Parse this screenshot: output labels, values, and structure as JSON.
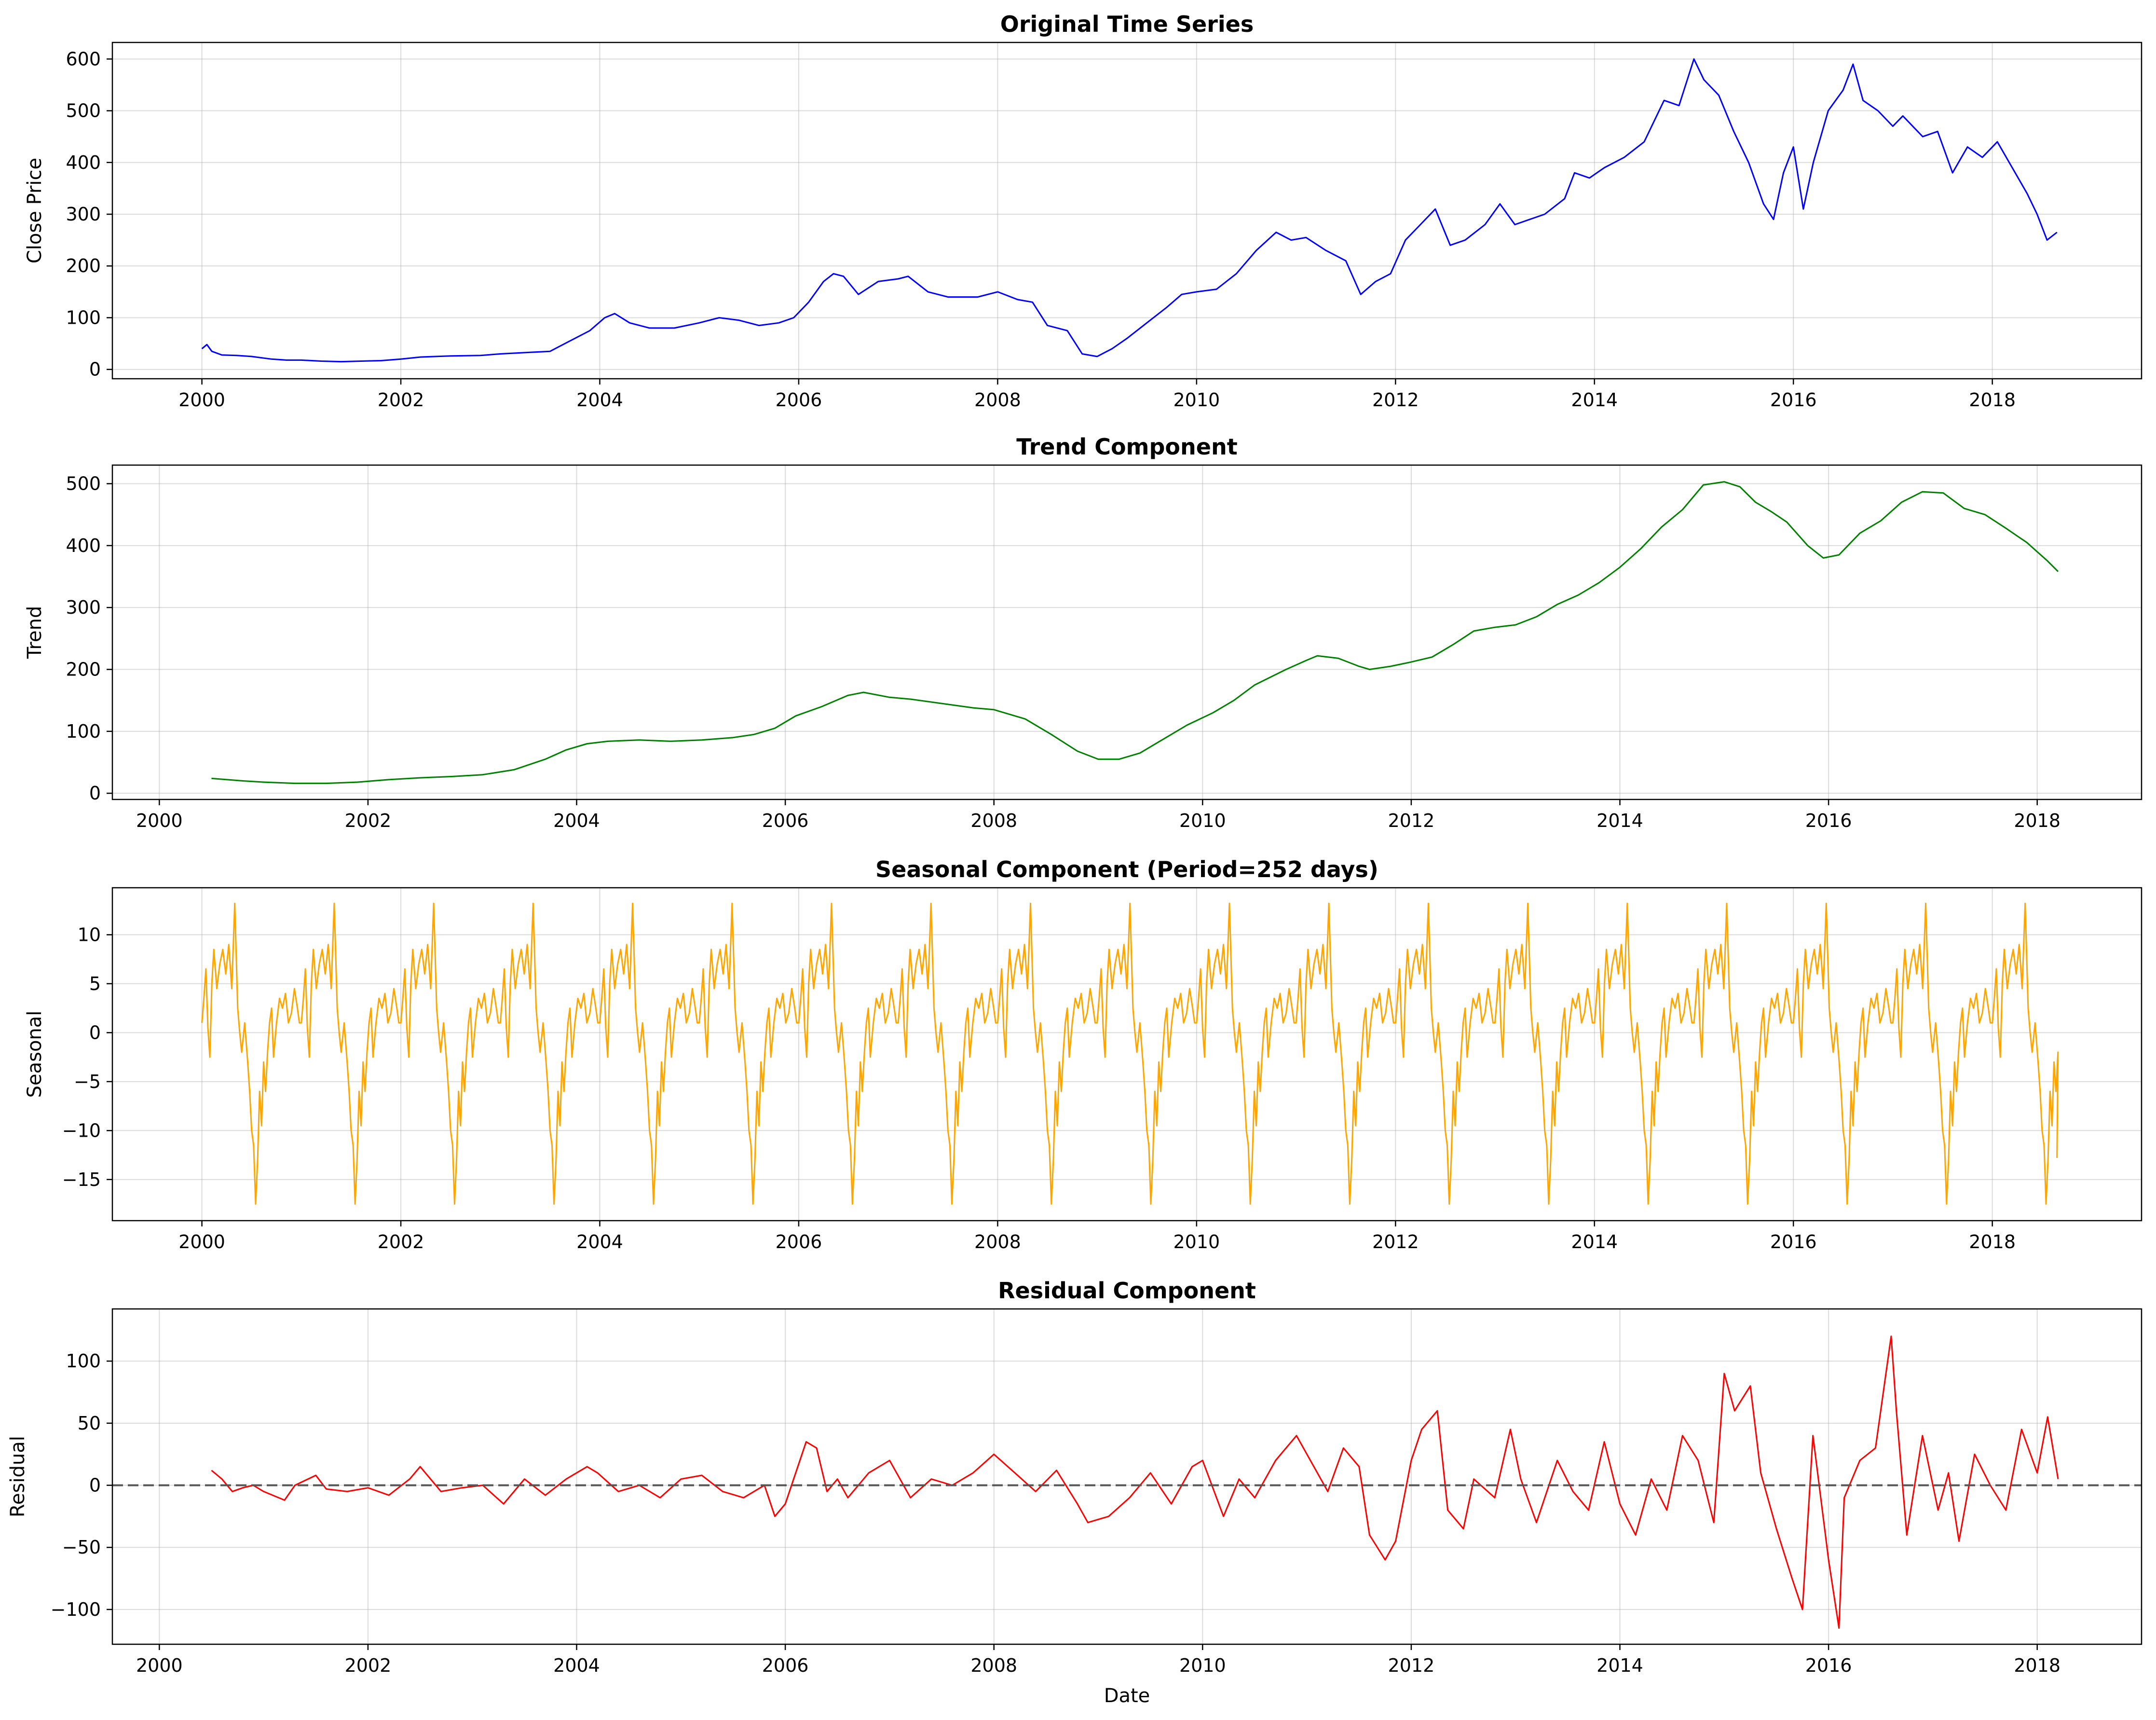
{
  "colors": {
    "background": "#ffffff",
    "axes": "#000000",
    "grid": "#b0b0b0",
    "zero_line": "#555555"
  },
  "chart_data": [
    {
      "type": "line",
      "title": "Original Time Series",
      "xlabel": "",
      "ylabel": "Close Price",
      "color": "#0000ff",
      "xlim": [
        1999.1,
        2019.5
      ],
      "ylim": [
        -18,
        632
      ],
      "xticks": [
        2000,
        2002,
        2004,
        2006,
        2008,
        2010,
        2012,
        2014,
        2016,
        2018
      ],
      "yticks": [
        0,
        100,
        200,
        300,
        400,
        500,
        600
      ],
      "grid": true,
      "series": [
        {
          "name": "Close Price",
          "x": [
            2000.0,
            2000.05,
            2000.1,
            2000.2,
            2000.35,
            2000.5,
            2000.7,
            2000.85,
            2001.0,
            2001.2,
            2001.4,
            2001.6,
            2001.8,
            2002.0,
            2002.2,
            2002.5,
            2002.8,
            2003.0,
            2003.3,
            2003.5,
            2003.7,
            2003.9,
            2004.05,
            2004.15,
            2004.3,
            2004.5,
            2004.75,
            2005.0,
            2005.2,
            2005.4,
            2005.6,
            2005.8,
            2005.95,
            2006.1,
            2006.25,
            2006.35,
            2006.45,
            2006.6,
            2006.8,
            2007.0,
            2007.1,
            2007.3,
            2007.5,
            2007.8,
            2008.0,
            2008.2,
            2008.35,
            2008.5,
            2008.7,
            2008.85,
            2009.0,
            2009.15,
            2009.3,
            2009.5,
            2009.7,
            2009.85,
            2010.0,
            2010.2,
            2010.4,
            2010.6,
            2010.8,
            2010.95,
            2011.1,
            2011.3,
            2011.5,
            2011.65,
            2011.8,
            2011.95,
            2012.1,
            2012.25,
            2012.4,
            2012.55,
            2012.7,
            2012.9,
            2013.05,
            2013.2,
            2013.35,
            2013.5,
            2013.7,
            2013.8,
            2013.95,
            2014.1,
            2014.3,
            2014.5,
            2014.7,
            2014.85,
            2015.0,
            2015.1,
            2015.25,
            2015.4,
            2015.55,
            2015.7,
            2015.8,
            2015.9,
            2016.0,
            2016.1,
            2016.2,
            2016.35,
            2016.5,
            2016.6,
            2016.7,
            2016.85,
            2017.0,
            2017.1,
            2017.3,
            2017.45,
            2017.6,
            2017.75,
            2017.9,
            2018.05,
            2018.2,
            2018.35,
            2018.45,
            2018.55,
            2018.65
          ],
          "y": [
            40,
            48,
            35,
            28,
            27,
            25,
            20,
            18,
            18,
            16,
            15,
            16,
            17,
            20,
            24,
            26,
            27,
            30,
            33,
            35,
            55,
            75,
            100,
            108,
            90,
            80,
            80,
            90,
            100,
            95,
            85,
            90,
            100,
            130,
            170,
            185,
            180,
            145,
            170,
            175,
            180,
            150,
            140,
            140,
            150,
            135,
            130,
            85,
            75,
            30,
            25,
            40,
            60,
            90,
            120,
            145,
            150,
            155,
            185,
            230,
            265,
            250,
            255,
            230,
            210,
            145,
            170,
            185,
            250,
            280,
            310,
            240,
            250,
            280,
            320,
            280,
            290,
            300,
            330,
            380,
            370,
            390,
            410,
            440,
            520,
            510,
            600,
            560,
            530,
            460,
            400,
            320,
            290,
            380,
            430,
            310,
            400,
            500,
            540,
            590,
            520,
            500,
            470,
            490,
            450,
            460,
            380,
            430,
            410,
            440,
            390,
            340,
            300,
            250,
            265
          ]
        }
      ]
    },
    {
      "type": "line",
      "title": "Trend Component",
      "xlabel": "",
      "ylabel": "Trend",
      "color": "#008000",
      "xlim": [
        1999.55,
        2019.0
      ],
      "ylim": [
        -10,
        530
      ],
      "xticks": [
        2000,
        2002,
        2004,
        2006,
        2008,
        2010,
        2012,
        2014,
        2016,
        2018
      ],
      "yticks": [
        0,
        100,
        200,
        300,
        400,
        500
      ],
      "grid": true,
      "series": [
        {
          "name": "Trend",
          "x": [
            2000.5,
            2000.8,
            2001.0,
            2001.3,
            2001.6,
            2001.9,
            2002.2,
            2002.5,
            2002.8,
            2003.1,
            2003.4,
            2003.7,
            2003.9,
            2004.1,
            2004.3,
            2004.6,
            2004.9,
            2005.2,
            2005.5,
            2005.7,
            2005.9,
            2006.1,
            2006.35,
            2006.6,
            2006.75,
            2007.0,
            2007.2,
            2007.5,
            2007.8,
            2008.0,
            2008.3,
            2008.55,
            2008.8,
            2009.0,
            2009.2,
            2009.4,
            2009.6,
            2009.85,
            2010.1,
            2010.3,
            2010.5,
            2010.8,
            2011.0,
            2011.1,
            2011.3,
            2011.5,
            2011.6,
            2011.8,
            2012.0,
            2012.2,
            2012.4,
            2012.6,
            2012.8,
            2013.0,
            2013.2,
            2013.4,
            2013.6,
            2013.8,
            2014.0,
            2014.2,
            2014.4,
            2014.6,
            2014.8,
            2015.0,
            2015.15,
            2015.3,
            2015.45,
            2015.6,
            2015.8,
            2015.95,
            2016.1,
            2016.3,
            2016.5,
            2016.7,
            2016.9,
            2017.1,
            2017.3,
            2017.5,
            2017.7,
            2017.9,
            2018.1,
            2018.2
          ],
          "y": [
            24,
            20,
            18,
            16,
            16,
            18,
            22,
            25,
            27,
            30,
            38,
            55,
            70,
            80,
            84,
            86,
            84,
            86,
            90,
            95,
            105,
            125,
            140,
            158,
            163,
            155,
            152,
            145,
            138,
            135,
            120,
            95,
            68,
            55,
            55,
            65,
            85,
            110,
            130,
            150,
            175,
            200,
            215,
            222,
            218,
            205,
            200,
            205,
            212,
            220,
            240,
            262,
            268,
            272,
            285,
            305,
            320,
            340,
            365,
            395,
            430,
            458,
            498,
            503,
            495,
            470,
            455,
            438,
            400,
            380,
            385,
            420,
            440,
            470,
            487,
            485,
            460,
            450,
            428,
            405,
            375,
            358
          ]
        }
      ]
    },
    {
      "type": "line",
      "title": "Seasonal Component (Period=252 days)",
      "xlabel": "",
      "ylabel": "Seasonal",
      "color": "#ffa500",
      "xlim": [
        1999.1,
        2019.5
      ],
      "ylim": [
        -19.2,
        14.8
      ],
      "xticks": [
        2000,
        2002,
        2004,
        2006,
        2008,
        2010,
        2012,
        2014,
        2016,
        2018
      ],
      "yticks": [
        -15,
        -10,
        -5,
        0,
        5,
        10
      ],
      "grid": true,
      "period_years": 1.0,
      "series": [
        {
          "name": "Seasonal",
          "x": [
            2000.0,
            2000.02,
            2000.04,
            2000.06,
            2000.08,
            2000.1,
            2000.12,
            2000.15,
            2000.18,
            2000.21,
            2000.24,
            2000.27,
            2000.3,
            2000.33,
            2000.36,
            2000.38,
            2000.4,
            2000.43,
            2000.46,
            2000.48,
            2000.5,
            2000.52,
            2000.54,
            2000.56,
            2000.58,
            2000.6,
            2000.62,
            2000.64,
            2000.66,
            2000.68,
            2000.7,
            2000.72,
            2000.75,
            2000.78,
            2000.81,
            2000.84,
            2000.87,
            2000.9,
            2000.93,
            2000.96,
            2000.98
          ],
          "y": [
            1.0,
            3.5,
            6.5,
            0.5,
            -2.5,
            5.0,
            8.5,
            4.5,
            7.0,
            8.5,
            6.0,
            9.0,
            4.5,
            13.2,
            2.5,
            0.0,
            -2.0,
            1.0,
            -3.0,
            -6.0,
            -10.0,
            -11.5,
            -17.5,
            -13.0,
            -6.0,
            -9.5,
            -3.0,
            -6.0,
            -2.0,
            1.0,
            2.5,
            -2.5,
            1.0,
            3.5,
            2.5,
            4.0,
            1.0,
            2.0,
            4.5,
            2.5,
            1.0
          ]
        }
      ]
    },
    {
      "type": "line",
      "title": "Residual Component",
      "xlabel": "Date",
      "ylabel": "Residual",
      "color": "#ff0000",
      "xlim": [
        1999.55,
        2019.0
      ],
      "ylim": [
        -128,
        142
      ],
      "xticks": [
        2000,
        2002,
        2004,
        2006,
        2008,
        2010,
        2012,
        2014,
        2016,
        2018
      ],
      "yticks": [
        -100,
        -50,
        0,
        50,
        100
      ],
      "grid": true,
      "reference_line": 0,
      "series": [
        {
          "name": "Residual",
          "x": [
            2000.5,
            2000.6,
            2000.7,
            2000.8,
            2000.9,
            2001.0,
            2001.2,
            2001.3,
            2001.5,
            2001.6,
            2001.8,
            2002.0,
            2002.2,
            2002.4,
            2002.5,
            2002.7,
            2002.9,
            2003.1,
            2003.3,
            2003.5,
            2003.7,
            2003.9,
            2004.1,
            2004.2,
            2004.4,
            2004.6,
            2004.8,
            2005.0,
            2005.2,
            2005.4,
            2005.6,
            2005.8,
            2005.9,
            2006.0,
            2006.2,
            2006.3,
            2006.4,
            2006.5,
            2006.6,
            2006.8,
            2007.0,
            2007.2,
            2007.4,
            2007.6,
            2007.8,
            2008.0,
            2008.2,
            2008.4,
            2008.6,
            2008.8,
            2008.9,
            2009.1,
            2009.3,
            2009.5,
            2009.7,
            2009.9,
            2010.0,
            2010.2,
            2010.35,
            2010.5,
            2010.7,
            2010.9,
            2011.0,
            2011.2,
            2011.35,
            2011.5,
            2011.6,
            2011.75,
            2011.85,
            2012.0,
            2012.1,
            2012.25,
            2012.35,
            2012.5,
            2012.6,
            2012.8,
            2012.95,
            2013.05,
            2013.2,
            2013.4,
            2013.55,
            2013.7,
            2013.85,
            2014.0,
            2014.15,
            2014.3,
            2014.45,
            2014.6,
            2014.75,
            2014.9,
            2015.0,
            2015.1,
            2015.25,
            2015.35,
            2015.5,
            2015.65,
            2015.75,
            2015.85,
            2016.0,
            2016.1,
            2016.15,
            2016.3,
            2016.45,
            2016.6,
            2016.65,
            2016.75,
            2016.9,
            2017.05,
            2017.15,
            2017.25,
            2017.4,
            2017.55,
            2017.7,
            2017.85,
            2018.0,
            2018.1,
            2018.2
          ],
          "y": [
            12,
            5,
            -5,
            -2,
            0,
            -5,
            -12,
            0,
            8,
            -3,
            -5,
            -2,
            -8,
            5,
            15,
            -5,
            -2,
            0,
            -15,
            5,
            -8,
            5,
            15,
            10,
            -5,
            0,
            -10,
            5,
            8,
            -5,
            -10,
            0,
            -25,
            -15,
            35,
            30,
            -5,
            5,
            -10,
            10,
            20,
            -10,
            5,
            0,
            10,
            25,
            10,
            -5,
            12,
            -15,
            -30,
            -25,
            -10,
            10,
            -15,
            15,
            20,
            -25,
            5,
            -10,
            20,
            40,
            25,
            -5,
            30,
            15,
            -40,
            -60,
            -45,
            20,
            45,
            60,
            -20,
            -35,
            5,
            -10,
            45,
            5,
            -30,
            20,
            -5,
            -20,
            35,
            -15,
            -40,
            5,
            -20,
            40,
            20,
            -30,
            90,
            60,
            80,
            10,
            -35,
            -75,
            -100,
            40,
            -60,
            -115,
            -10,
            20,
            30,
            120,
            60,
            -40,
            40,
            -20,
            10,
            -45,
            25,
            0,
            -20,
            45,
            10,
            55,
            5
          ]
        }
      ]
    }
  ]
}
